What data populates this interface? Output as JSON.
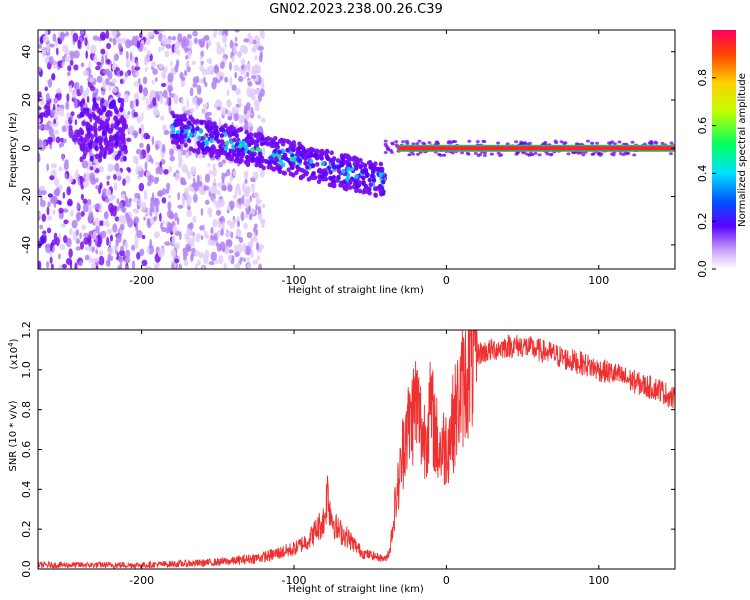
{
  "title": "GN02.2023.238.00.26.C39",
  "chart_data": [
    {
      "type": "heatmap",
      "title": "",
      "xlabel": "Height of straight line (km)",
      "ylabel": "Frequency (Hz)",
      "xlim": [
        -268,
        150
      ],
      "ylim": [
        -50,
        49
      ],
      "xticks": [
        -200,
        -100,
        0,
        100
      ],
      "yticks": [
        -40,
        -20,
        0,
        20,
        40
      ],
      "colorbar": {
        "label": "Normalized spectral amplitude",
        "range": [
          0,
          1
        ],
        "ticks": [
          "0.0",
          "0.2",
          "0.4",
          "0.6",
          "0.8"
        ]
      },
      "features": [
        {
          "x": [
            -268,
            -120
          ],
          "description_value": "diffuse noise, amplitude 0.1-0.4"
        },
        {
          "x": [
            -180,
            -40
          ],
          "y_center": [
            8,
            -14
          ],
          "amplitude": 0.4
        },
        {
          "x": [
            -40,
            150
          ],
          "y_center": 0,
          "amplitude": 0.95
        }
      ],
      "colors": {
        "low": "#e8d8f8",
        "mid": "#7a10f0",
        "high": "#ff1020"
      }
    },
    {
      "type": "line",
      "title": "",
      "xlabel": "Height of straight line (km)",
      "ylabel": "SNR (10 * v/v)",
      "y_multiplier": "(x10",
      "y_multiplier_exp": "4",
      "y_multiplier_close": ")",
      "xlim": [
        -268,
        150
      ],
      "ylim": [
        0,
        1.2
      ],
      "xticks": [
        -200,
        -100,
        0,
        100
      ],
      "yticks": [
        "0.0",
        "0.2",
        "0.4",
        "0.6",
        "0.8",
        "1.0",
        "1.2"
      ],
      "series": [
        {
          "color": "#ee3030",
          "x": [
            -268,
            -240,
            -200,
            -160,
            -140,
            -120,
            -100,
            -90,
            -80,
            -78,
            -76,
            -72,
            -65,
            -55,
            -45,
            -40,
            -37,
            -34,
            -30,
            -27,
            -24,
            -20,
            -15,
            -10,
            -5,
            0,
            5,
            10,
            15,
            20,
            30,
            40,
            50,
            60,
            70,
            80,
            90,
            100,
            110,
            120,
            130,
            140,
            150
          ],
          "y": [
            0.02,
            0.02,
            0.02,
            0.03,
            0.04,
            0.06,
            0.1,
            0.15,
            0.25,
            0.4,
            0.28,
            0.2,
            0.16,
            0.08,
            0.06,
            0.05,
            0.1,
            0.3,
            0.5,
            0.7,
            0.72,
            0.85,
            0.65,
            0.8,
            0.6,
            0.62,
            0.75,
            0.9,
            1.0,
            1.08,
            1.1,
            1.12,
            1.12,
            1.1,
            1.08,
            1.05,
            1.03,
            1.0,
            0.98,
            0.95,
            0.92,
            0.9,
            0.85
          ]
        }
      ]
    }
  ]
}
